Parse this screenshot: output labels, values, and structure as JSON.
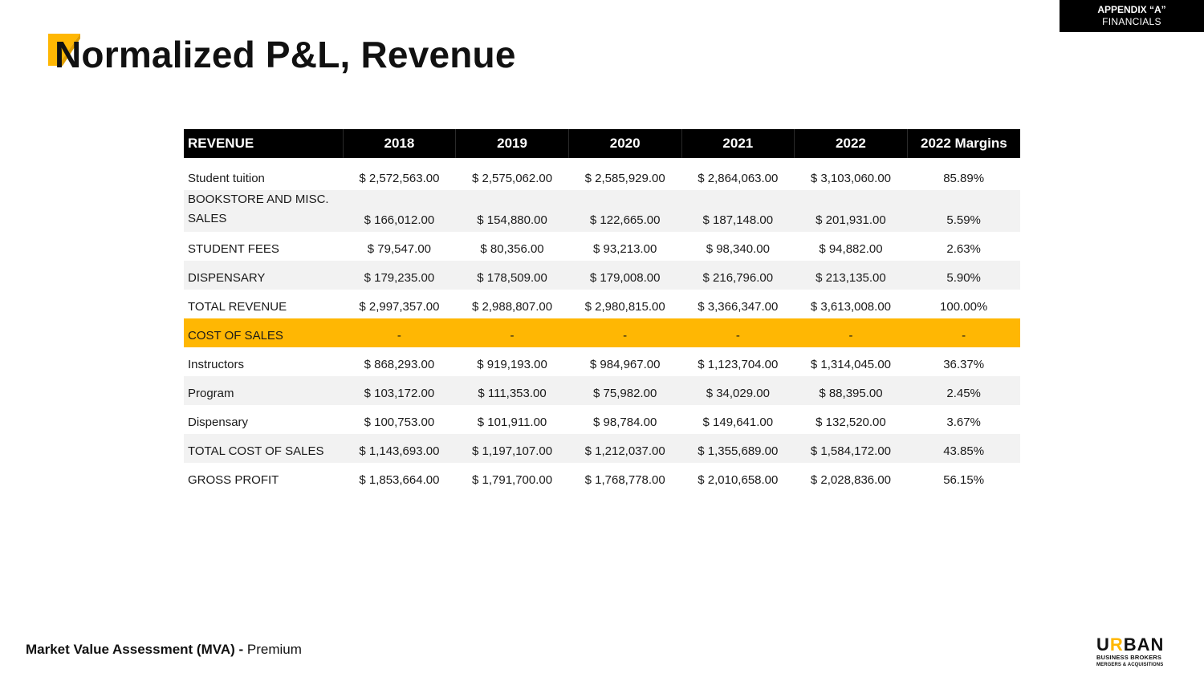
{
  "appendix": {
    "line1": "APPENDIX “A”",
    "line2": "FINANCIALS"
  },
  "title": "Normalized P&L, Revenue",
  "colors": {
    "accent": "#ffb703",
    "header_bg": "#000000",
    "alt_row": "#f2f2f2"
  },
  "table": {
    "headers": [
      "REVENUE",
      "2018",
      "2019",
      "2020",
      "2021",
      "2022",
      "2022 Margins"
    ],
    "rows": [
      [
        "Student tuition",
        "$ 2,572,563.00",
        "$ 2,575,062.00",
        "$ 2,585,929.00",
        "$ 2,864,063.00",
        "$ 3,103,060.00",
        "85.89%"
      ],
      [
        "BOOKSTORE AND MISC. SALES",
        "$ 166,012.00",
        "$ 154,880.00",
        "$ 122,665.00",
        "$ 187,148.00",
        "$ 201,931.00",
        "5.59%"
      ],
      [
        "STUDENT FEES",
        "$ 79,547.00",
        "$ 80,356.00",
        "$ 93,213.00",
        "$ 98,340.00",
        "$ 94,882.00",
        "2.63%"
      ],
      [
        "DISPENSARY",
        "$ 179,235.00",
        "$ 178,509.00",
        "$ 179,008.00",
        "$ 216,796.00",
        "$ 213,135.00",
        "5.90%"
      ],
      [
        "TOTAL REVENUE",
        "$ 2,997,357.00",
        "$ 2,988,807.00",
        "$ 2,980,815.00",
        "$ 3,366,347.00",
        "$ 3,613,008.00",
        "100.00%"
      ],
      [
        "COST OF SALES",
        "-",
        "-",
        "-",
        "-",
        "-",
        "-"
      ],
      [
        "Instructors",
        "$ 868,293.00",
        "$ 919,193.00",
        "$ 984,967.00",
        "$ 1,123,704.00",
        "$ 1,314,045.00",
        "36.37%"
      ],
      [
        "Program",
        "$ 103,172.00",
        "$ 111,353.00",
        "$ 75,982.00",
        "$ 34,029.00",
        "$ 88,395.00",
        "2.45%"
      ],
      [
        "Dispensary",
        "$ 100,753.00",
        "$ 101,911.00",
        "$ 98,784.00",
        "$ 149,641.00",
        "$ 132,520.00",
        "3.67%"
      ],
      [
        "TOTAL COST OF SALES",
        "$ 1,143,693.00",
        "$ 1,197,107.00",
        "$ 1,212,037.00",
        "$ 1,355,689.00",
        "$ 1,584,172.00",
        "43.85%"
      ],
      [
        "GROSS PROFIT",
        "$ 1,853,664.00",
        "$ 1,791,700.00",
        "$ 1,768,778.00",
        "$ 2,010,658.00",
        "$ 2,028,836.00",
        "56.15%"
      ]
    ]
  },
  "footer": {
    "bold": "Market Value Assessment (MVA) -",
    "regular": "Premium"
  },
  "logo": {
    "brand_start": "U",
    "brand_accent": "R",
    "brand_end": "BAN",
    "line2": "BUSINESS BROKERS",
    "line3": "MERGERS & ACQUISITIONS"
  }
}
